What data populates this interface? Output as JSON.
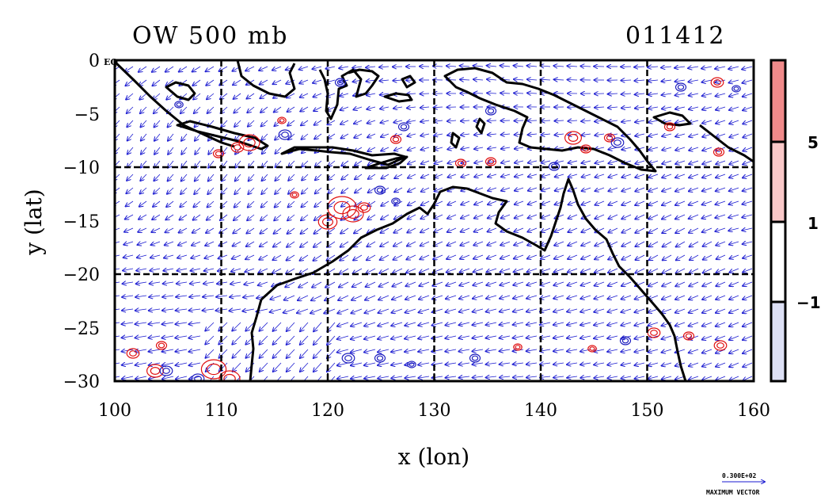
{
  "title": {
    "left": "OW 500 mb",
    "right": "011412"
  },
  "axes": {
    "xlabel": "x (lon)",
    "ylabel": "y (lat)",
    "x_ticks": [
      "100",
      "110",
      "120",
      "130",
      "140",
      "150",
      "160"
    ],
    "y_ticks": [
      "0",
      "−5",
      "−10",
      "−15",
      "−20",
      "−25",
      "−30"
    ],
    "equator_label": "EQ",
    "xlim": [
      100,
      160
    ],
    "ylim": [
      -30,
      0
    ]
  },
  "colorbar": {
    "labels": [
      "5",
      "1",
      "−1"
    ],
    "colors": [
      "#f08a8a",
      "#f9c8c8",
      "#ffffff",
      "#dde0f5"
    ]
  },
  "reference_vector": {
    "value": "0.300E+02",
    "label": "MAXIMUM VECTOR"
  },
  "colors": {
    "coast": "#000000",
    "vectors": "#1a1ad0",
    "contour_pos": "#e01010",
    "contour_neg": "#2020c0"
  }
}
